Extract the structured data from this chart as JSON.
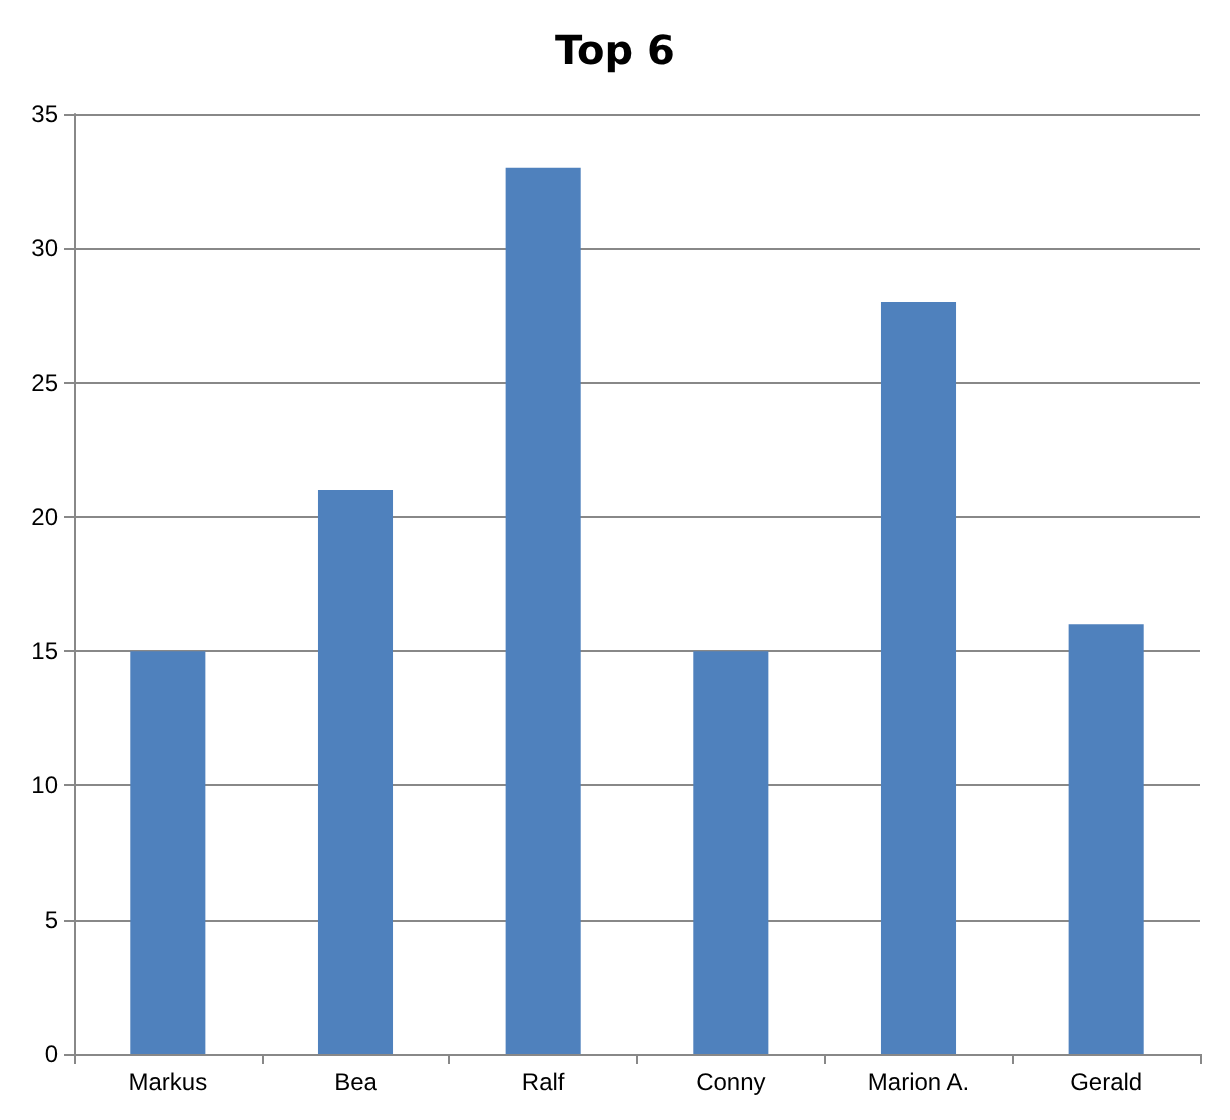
{
  "chart_data": {
    "type": "bar",
    "title": "Top 6",
    "categories": [
      "Markus",
      "Bea",
      "Ralf",
      "Conny",
      "Marion A.",
      "Gerald"
    ],
    "values": [
      15,
      21,
      33,
      15,
      28,
      16
    ],
    "color": "#4f81bd",
    "ylim": [
      0,
      35
    ],
    "yticks": [
      0,
      5,
      10,
      15,
      20,
      25,
      30,
      35
    ],
    "grid": "y"
  }
}
